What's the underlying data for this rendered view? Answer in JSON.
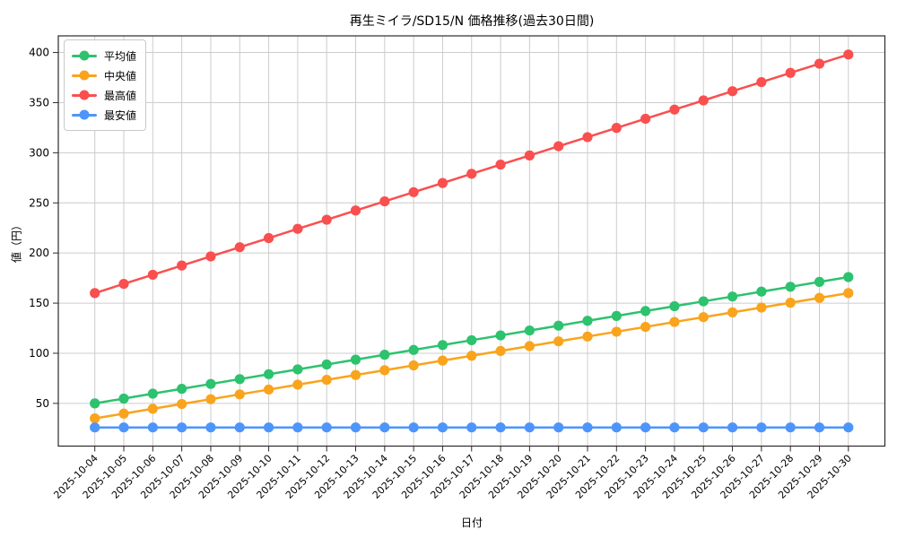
{
  "chart_data": {
    "type": "line",
    "title": "再生ミイラ/SD15/N 価格推移(過去30日間)",
    "xlabel": "日付",
    "ylabel": "値（円）",
    "x": [
      "2025-10-04",
      "2025-10-05",
      "2025-10-06",
      "2025-10-07",
      "2025-10-08",
      "2025-10-09",
      "2025-10-10",
      "2025-10-11",
      "2025-10-12",
      "2025-10-13",
      "2025-10-14",
      "2025-10-15",
      "2025-10-16",
      "2025-10-17",
      "2025-10-18",
      "2025-10-19",
      "2025-10-20",
      "2025-10-21",
      "2025-10-22",
      "2025-10-23",
      "2025-10-24",
      "2025-10-25",
      "2025-10-26",
      "2025-10-27",
      "2025-10-28",
      "2025-10-29",
      "2025-10-30"
    ],
    "series": [
      {
        "key": "average",
        "name": "平均値",
        "color": "#2dc26e",
        "values": [
          50.0,
          54.8,
          59.7,
          64.5,
          69.4,
          74.2,
          79.1,
          83.9,
          88.8,
          93.6,
          98.5,
          103.3,
          108.2,
          113.0,
          117.8,
          122.7,
          127.5,
          132.4,
          137.2,
          142.1,
          146.9,
          151.8,
          156.6,
          161.5,
          166.3,
          171.2,
          176.0
        ]
      },
      {
        "key": "median",
        "name": "中央値",
        "color": "#f9a41c",
        "values": [
          35.0,
          39.8,
          44.6,
          49.4,
          54.2,
          59.0,
          63.8,
          68.7,
          73.5,
          78.3,
          83.1,
          87.9,
          92.7,
          97.5,
          102.3,
          107.1,
          111.9,
          116.7,
          121.5,
          126.3,
          131.2,
          136.0,
          140.8,
          145.6,
          150.4,
          155.2,
          160.0
        ]
      },
      {
        "key": "max",
        "name": "最高値",
        "color": "#fa4f4f",
        "values": [
          160.0,
          169.2,
          178.3,
          187.5,
          196.6,
          205.8,
          214.9,
          224.1,
          233.2,
          242.4,
          251.5,
          260.7,
          269.8,
          279.0,
          288.2,
          297.3,
          306.5,
          315.6,
          324.8,
          333.9,
          343.1,
          352.2,
          361.4,
          370.5,
          379.7,
          388.8,
          398.0
        ]
      },
      {
        "key": "min",
        "name": "最安値",
        "color": "#4e95fb",
        "values": [
          26,
          26,
          26,
          26,
          26,
          26,
          26,
          26,
          26,
          26,
          26,
          26,
          26,
          26,
          26,
          26,
          26,
          26,
          26,
          26,
          26,
          26,
          26,
          26,
          26,
          26,
          26
        ]
      }
    ],
    "yticks": [
      50,
      100,
      150,
      200,
      250,
      300,
      350,
      400
    ],
    "ylim": [
      7.4,
      416.6
    ],
    "grid": true,
    "legend_position": "upper-left",
    "grid_color": "#cccccc",
    "spine_color": "#2b2b2b",
    "background": "#ffffff"
  }
}
